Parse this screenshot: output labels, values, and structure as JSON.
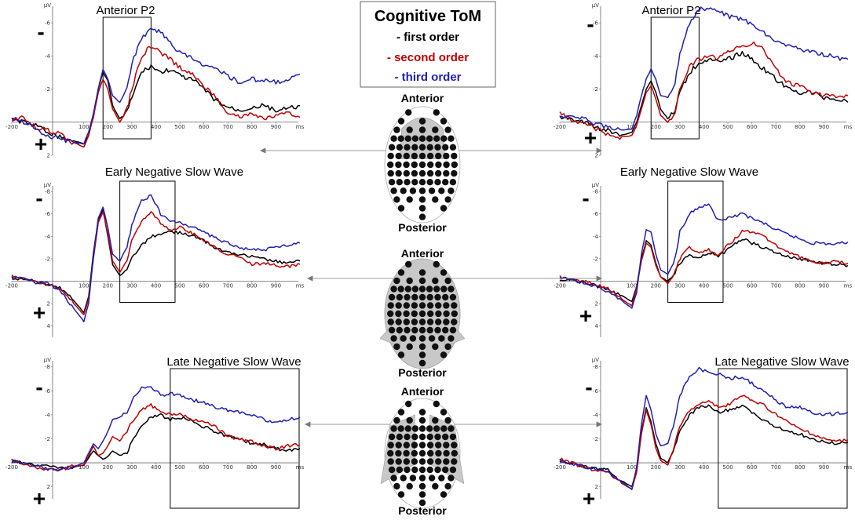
{
  "figure": {
    "legend": {
      "title": "Cognitive ToM",
      "items": [
        {
          "label": "- first order",
          "color": "#000000"
        },
        {
          "label": "- second order",
          "color": "#c00000"
        },
        {
          "label": "- third order",
          "color": "#1f1fb4"
        }
      ]
    },
    "polarity": {
      "negative": "-",
      "positive": "+"
    },
    "head_labels": {
      "front": "Anterior",
      "back": "Posterior"
    }
  },
  "chart_data": [
    {
      "type": "line",
      "id": "left-p2",
      "title": "Anterior P2",
      "xlabel": "ms",
      "ylabel": "µV",
      "xlim": [
        -200,
        1000
      ],
      "ylim": [
        -7,
        2
      ],
      "y_inverted": true,
      "x_ticks": [
        -200,
        100,
        200,
        300,
        400,
        500,
        600,
        700,
        800,
        900
      ],
      "y_ticks": [
        -6,
        -4,
        -2,
        2
      ],
      "window_ms": [
        180,
        380
      ],
      "x": [
        -200,
        -150,
        -100,
        -50,
        0,
        50,
        100,
        120,
        140,
        160,
        180,
        200,
        220,
        250,
        280,
        300,
        340,
        380,
        420,
        460,
        500,
        560,
        600,
        650,
        700,
        750,
        800,
        850,
        900,
        950,
        1000
      ],
      "series": [
        {
          "name": "first order",
          "color": "#000000",
          "values": [
            -0.2,
            0.0,
            0.2,
            0.6,
            0.9,
            1.1,
            1.3,
            0.8,
            -0.5,
            -2.0,
            -3.0,
            -2.5,
            -1.0,
            -0.2,
            -0.6,
            -1.5,
            -3.0,
            -3.4,
            -3.0,
            -3.2,
            -2.8,
            -2.5,
            -2.0,
            -1.3,
            -0.9,
            -0.7,
            -0.9,
            -1.0,
            -0.7,
            -0.8,
            -1.0
          ]
        },
        {
          "name": "second order",
          "color": "#c00000",
          "values": [
            -0.1,
            -0.3,
            0.3,
            0.5,
            0.7,
            1.2,
            1.5,
            0.8,
            -0.3,
            -1.8,
            -2.6,
            -2.0,
            -0.8,
            0.0,
            -0.8,
            -2.0,
            -4.0,
            -4.6,
            -4.2,
            -3.8,
            -3.3,
            -2.8,
            -2.2,
            -1.5,
            -0.6,
            -0.3,
            -0.5,
            -0.2,
            -0.4,
            -0.5,
            -0.3
          ]
        },
        {
          "name": "third order",
          "color": "#1f1fb4",
          "values": [
            -0.3,
            0.0,
            0.4,
            0.8,
            1.0,
            1.2,
            1.3,
            0.6,
            -0.5,
            -2.0,
            -3.2,
            -2.6,
            -1.6,
            -1.2,
            -2.0,
            -3.6,
            -5.0,
            -5.7,
            -5.4,
            -4.8,
            -4.2,
            -3.8,
            -3.4,
            -3.2,
            -2.8,
            -2.4,
            -2.6,
            -2.5,
            -2.4,
            -2.6,
            -2.9
          ]
        }
      ]
    },
    {
      "type": "line",
      "id": "right-p2",
      "title": "Anterior P2",
      "xlabel": "ms",
      "ylabel": "µV",
      "xlim": [
        -200,
        1000
      ],
      "ylim": [
        -7,
        2
      ],
      "y_inverted": true,
      "x_ticks": [
        -200,
        100,
        200,
        300,
        400,
        500,
        600,
        700,
        800,
        900
      ],
      "y_ticks": [
        -6,
        -4,
        -2,
        2
      ],
      "window_ms": [
        180,
        380
      ],
      "x": [
        -200,
        -150,
        -100,
        -50,
        0,
        50,
        100,
        120,
        140,
        160,
        180,
        200,
        220,
        250,
        280,
        300,
        340,
        380,
        420,
        460,
        500,
        560,
        600,
        650,
        700,
        750,
        800,
        850,
        900,
        950,
        1000
      ],
      "series": [
        {
          "name": "first order",
          "color": "#000000",
          "values": [
            -0.3,
            -0.2,
            0.0,
            0.3,
            0.5,
            0.8,
            0.6,
            0.0,
            -1.0,
            -2.0,
            -2.5,
            -1.8,
            -0.8,
            -0.2,
            -0.7,
            -1.8,
            -3.0,
            -3.6,
            -3.8,
            -3.6,
            -3.8,
            -4.2,
            -3.8,
            -3.2,
            -2.6,
            -2.0,
            -1.8,
            -1.8,
            -1.5,
            -1.4,
            -1.2
          ]
        },
        {
          "name": "second order",
          "color": "#c00000",
          "values": [
            -0.6,
            -0.1,
            0.0,
            0.4,
            0.7,
            0.9,
            0.8,
            0.2,
            -0.8,
            -1.8,
            -2.2,
            -1.4,
            -0.4,
            0.0,
            -0.6,
            -2.0,
            -3.4,
            -3.8,
            -4.0,
            -3.8,
            -4.2,
            -4.6,
            -4.8,
            -4.4,
            -3.2,
            -2.4,
            -2.2,
            -1.8,
            -1.6,
            -1.5,
            -1.6
          ]
        },
        {
          "name": "third order",
          "color": "#1f1fb4",
          "values": [
            -0.4,
            -0.3,
            -0.2,
            0.1,
            0.3,
            0.5,
            0.4,
            -0.4,
            -1.6,
            -2.6,
            -3.2,
            -2.6,
            -1.6,
            -1.5,
            -2.4,
            -4.2,
            -6.0,
            -6.8,
            -6.9,
            -6.7,
            -6.4,
            -6.2,
            -5.9,
            -5.4,
            -4.9,
            -4.6,
            -4.4,
            -4.2,
            -4.1,
            -3.9,
            -3.8
          ]
        }
      ]
    },
    {
      "type": "line",
      "id": "left-early",
      "title": "Early Negative Slow Wave",
      "xlabel": "ms",
      "ylabel": "µV",
      "xlim": [
        -200,
        1000
      ],
      "ylim": [
        -8.5,
        5
      ],
      "y_inverted": true,
      "x_ticks": [
        -200,
        100,
        200,
        300,
        400,
        500,
        600,
        700,
        800,
        900
      ],
      "y_ticks": [
        -8,
        -6,
        -4,
        -2,
        2,
        4
      ],
      "window_ms": [
        250,
        480
      ],
      "x": [
        -200,
        -150,
        -100,
        -50,
        0,
        50,
        100,
        120,
        140,
        160,
        180,
        200,
        220,
        250,
        280,
        300,
        340,
        380,
        420,
        460,
        500,
        560,
        600,
        650,
        700,
        750,
        800,
        850,
        900,
        950,
        1000
      ],
      "series": [
        {
          "name": "first order",
          "color": "#000000",
          "values": [
            -0.3,
            -0.2,
            0.0,
            0.3,
            0.6,
            1.5,
            2.8,
            1.4,
            -2.5,
            -5.5,
            -6.4,
            -4.0,
            -1.5,
            -0.5,
            -1.0,
            -2.0,
            -3.2,
            -4.0,
            -4.2,
            -4.4,
            -4.3,
            -4.0,
            -3.6,
            -3.0,
            -2.6,
            -2.4,
            -2.2,
            -2.0,
            -1.8,
            -1.6,
            -1.8
          ]
        },
        {
          "name": "second order",
          "color": "#c00000",
          "values": [
            -0.5,
            -0.2,
            0.1,
            0.3,
            0.7,
            1.8,
            3.0,
            1.6,
            -2.0,
            -5.2,
            -6.2,
            -4.2,
            -1.8,
            -0.8,
            -1.8,
            -3.6,
            -5.4,
            -6.2,
            -5.2,
            -4.6,
            -4.8,
            -4.2,
            -3.6,
            -3.0,
            -2.4,
            -2.2,
            -1.5,
            -1.6,
            -1.4,
            -1.3,
            -1.5
          ]
        },
        {
          "name": "third order",
          "color": "#1f1fb4",
          "values": [
            -0.2,
            -0.3,
            0.1,
            0.2,
            0.8,
            2.2,
            3.6,
            2.0,
            -2.2,
            -5.6,
            -6.6,
            -4.8,
            -2.4,
            -1.8,
            -3.0,
            -5.0,
            -7.2,
            -7.6,
            -6.0,
            -5.4,
            -5.2,
            -4.8,
            -4.4,
            -3.8,
            -3.4,
            -3.0,
            -2.8,
            -2.8,
            -3.0,
            -3.2,
            -3.4
          ]
        }
      ]
    },
    {
      "type": "line",
      "id": "right-early",
      "title": "Early Negative  Slow Wave",
      "xlabel": "ms",
      "ylabel": "µV",
      "xlim": [
        -200,
        1000
      ],
      "ylim": [
        -8.5,
        5
      ],
      "y_inverted": true,
      "x_ticks": [
        -200,
        100,
        200,
        300,
        400,
        500,
        600,
        700,
        800,
        900
      ],
      "y_ticks": [
        -8,
        -6,
        -4,
        -2,
        2,
        4
      ],
      "window_ms": [
        250,
        480
      ],
      "x": [
        -200,
        -150,
        -100,
        -50,
        0,
        50,
        100,
        120,
        140,
        160,
        180,
        200,
        220,
        250,
        280,
        300,
        340,
        380,
        420,
        460,
        500,
        560,
        600,
        650,
        700,
        750,
        800,
        850,
        900,
        950,
        1000
      ],
      "series": [
        {
          "name": "first order",
          "color": "#000000",
          "values": [
            -0.2,
            -0.1,
            0.1,
            0.4,
            0.8,
            1.2,
            1.8,
            0.5,
            -2.0,
            -3.6,
            -3.2,
            -1.6,
            -0.4,
            0.0,
            -0.8,
            -1.6,
            -2.4,
            -2.0,
            -2.6,
            -2.2,
            -2.8,
            -3.8,
            -3.4,
            -3.0,
            -2.6,
            -2.2,
            -2.0,
            -1.8,
            -1.6,
            -1.5,
            -1.4
          ]
        },
        {
          "name": "second order",
          "color": "#c00000",
          "values": [
            -0.4,
            -0.2,
            0.0,
            0.3,
            0.6,
            1.5,
            2.2,
            0.6,
            -1.8,
            -3.4,
            -3.0,
            -1.4,
            -0.4,
            0.2,
            -0.8,
            -2.0,
            -3.0,
            -2.6,
            -2.8,
            -2.4,
            -3.2,
            -4.4,
            -4.4,
            -4.0,
            -3.2,
            -2.6,
            -2.2,
            -1.8,
            -1.6,
            -1.8,
            -1.6
          ]
        },
        {
          "name": "third order",
          "color": "#1f1fb4",
          "values": [
            -0.3,
            -0.2,
            0.2,
            0.5,
            0.9,
            1.6,
            2.4,
            1.0,
            -2.4,
            -4.6,
            -4.4,
            -2.4,
            -1.0,
            -0.6,
            -2.0,
            -4.4,
            -6.0,
            -6.6,
            -6.8,
            -5.4,
            -5.6,
            -6.0,
            -5.6,
            -5.2,
            -4.6,
            -4.2,
            -3.8,
            -3.4,
            -3.4,
            -3.3,
            -3.5
          ]
        }
      ]
    },
    {
      "type": "line",
      "id": "left-late",
      "title": "Late Negative  Slow Wave",
      "xlabel": "ms",
      "ylabel": "µV",
      "xlim": [
        -200,
        1000
      ],
      "ylim": [
        -8.5,
        3
      ],
      "y_inverted": true,
      "x_ticks": [
        -200,
        100,
        200,
        300,
        400,
        500,
        600,
        700,
        800,
        900
      ],
      "y_ticks": [
        -8,
        -6,
        -4,
        -2,
        2
      ],
      "window_ms": [
        460,
        1000
      ],
      "x": [
        -200,
        -150,
        -100,
        -50,
        0,
        50,
        100,
        120,
        140,
        160,
        180,
        200,
        220,
        250,
        280,
        300,
        340,
        380,
        420,
        460,
        500,
        560,
        600,
        650,
        700,
        750,
        800,
        850,
        900,
        950,
        1000
      ],
      "series": [
        {
          "name": "first order",
          "color": "#000000",
          "values": [
            -0.1,
            0.0,
            0.2,
            0.3,
            0.5,
            0.4,
            0.2,
            -0.4,
            -1.0,
            -0.6,
            -0.3,
            -0.5,
            -1.0,
            -0.6,
            -0.8,
            -1.8,
            -3.2,
            -3.8,
            -4.0,
            -3.6,
            -3.8,
            -3.4,
            -3.0,
            -2.6,
            -2.2,
            -2.0,
            -1.6,
            -1.5,
            -1.2,
            -1.0,
            -1.2
          ]
        },
        {
          "name": "second order",
          "color": "#c00000",
          "values": [
            -0.2,
            0.1,
            0.4,
            0.5,
            0.6,
            0.3,
            0.2,
            -0.6,
            -1.4,
            -0.6,
            -0.8,
            -1.4,
            -2.2,
            -1.8,
            -2.6,
            -3.4,
            -4.4,
            -4.8,
            -4.2,
            -4.0,
            -4.0,
            -3.6,
            -3.4,
            -3.0,
            -2.2,
            -2.0,
            -1.8,
            -1.4,
            -1.2,
            -1.4,
            -1.5
          ]
        },
        {
          "name": "third order",
          "color": "#1f1fb4",
          "values": [
            -0.2,
            0.1,
            0.3,
            0.5,
            0.6,
            0.4,
            0.0,
            -0.8,
            -1.6,
            -1.2,
            -1.8,
            -2.6,
            -3.6,
            -3.8,
            -4.2,
            -5.2,
            -6.2,
            -6.4,
            -5.6,
            -5.8,
            -5.6,
            -5.2,
            -5.0,
            -4.6,
            -4.4,
            -4.2,
            -4.0,
            -3.6,
            -3.4,
            -3.6,
            -3.8
          ]
        }
      ]
    },
    {
      "type": "line",
      "id": "right-late",
      "title": "Late Negative  Slow Wave",
      "xlabel": "ms",
      "ylabel": "µV",
      "xlim": [
        -200,
        1000
      ],
      "ylim": [
        -8.5,
        3
      ],
      "y_inverted": true,
      "x_ticks": [
        -200,
        100,
        200,
        300,
        400,
        500,
        600,
        700,
        800,
        900
      ],
      "y_ticks": [
        -8,
        -6,
        -4,
        -2,
        2
      ],
      "window_ms": [
        460,
        1000
      ],
      "x": [
        -200,
        -150,
        -100,
        -50,
        0,
        50,
        100,
        120,
        140,
        160,
        180,
        200,
        220,
        250,
        280,
        300,
        340,
        380,
        420,
        460,
        500,
        560,
        600,
        650,
        700,
        750,
        800,
        850,
        900,
        950,
        1000
      ],
      "series": [
        {
          "name": "first order",
          "color": "#000000",
          "values": [
            -0.1,
            0.0,
            0.3,
            0.5,
            0.6,
            1.4,
            2.0,
            0.6,
            -2.6,
            -4.6,
            -3.4,
            -1.6,
            -0.4,
            0.0,
            -1.4,
            -2.6,
            -4.0,
            -4.6,
            -4.8,
            -4.2,
            -4.4,
            -4.8,
            -4.2,
            -3.6,
            -3.0,
            -2.6,
            -2.4,
            -2.0,
            -1.8,
            -1.6,
            -1.7
          ]
        },
        {
          "name": "second order",
          "color": "#c00000",
          "values": [
            -0.3,
            0.0,
            0.4,
            0.6,
            0.8,
            1.6,
            2.2,
            0.8,
            -2.4,
            -4.4,
            -3.2,
            -1.2,
            -0.2,
            0.2,
            -1.6,
            -3.0,
            -4.4,
            -4.8,
            -5.2,
            -4.6,
            -4.8,
            -5.6,
            -5.2,
            -4.8,
            -4.0,
            -3.4,
            -2.8,
            -2.4,
            -2.0,
            -1.8,
            -1.9
          ]
        },
        {
          "name": "third order",
          "color": "#1f1fb4",
          "values": [
            -0.2,
            0.1,
            0.3,
            0.5,
            0.7,
            1.5,
            2.2,
            0.4,
            -3.2,
            -5.6,
            -4.4,
            -2.4,
            -1.4,
            -1.6,
            -3.6,
            -5.6,
            -7.2,
            -7.8,
            -7.6,
            -7.4,
            -7.0,
            -7.2,
            -6.6,
            -6.0,
            -5.2,
            -4.6,
            -4.6,
            -4.2,
            -4.0,
            -4.1,
            -4.2
          ]
        }
      ]
    }
  ]
}
